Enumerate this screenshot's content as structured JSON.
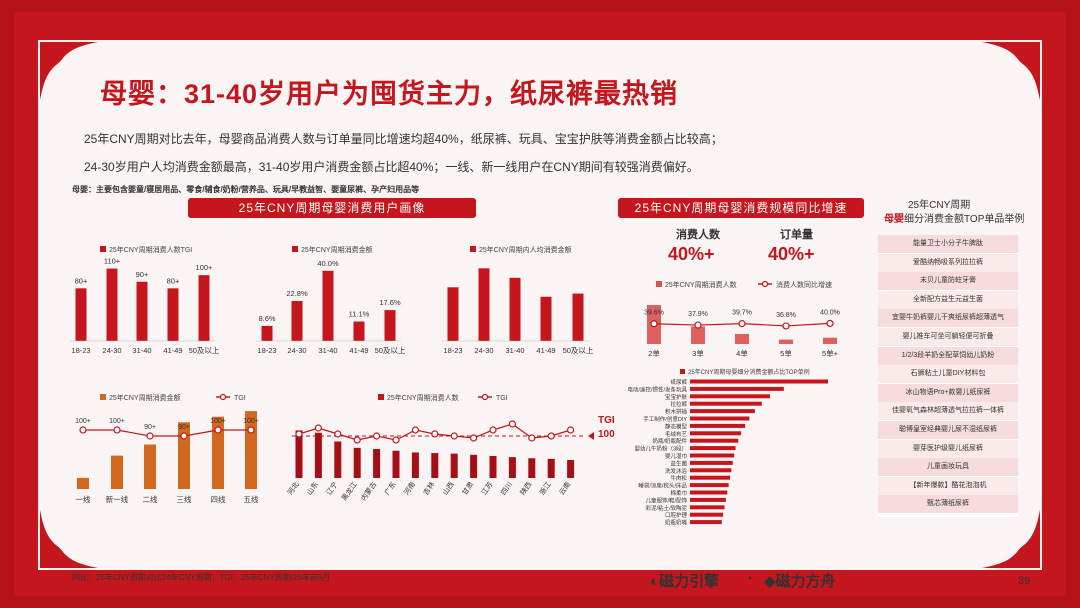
{
  "title": "母婴：31-40岁用户为囤货主力，纸尿裤最热销",
  "summary": [
    "25年CNY周期对比去年，母婴商品消费人数与订单量同比增速均超40%，纸尿裤、玩具、宝宝护肤等消费金额占比较高；",
    "24-30岁用户人均消费金额最高，31-40岁用户消费金额占比超40%；一线、新一线用户在CNY期间有较强消费偏好。"
  ],
  "note": "母婴：主要包含婴童/寝居用品、零食/辅食/奶粉/营养品、玩具/早教益智、婴童尿裤、孕产妇用品等",
  "banners": {
    "profile": "25年CNY周期母婴消费用户画像",
    "growth": "25年CNY周期母婴消费规模同比增速"
  },
  "right_panel": {
    "title1": "25年CNY周期",
    "title2_accent": "母婴",
    "title2_rest": "细分消费金额TOP单品举例",
    "items": [
      "能量卫士小分子牛脾肽",
      "爱酷纳畅吸系列拉拉裤",
      "末贝儿童防蛀牙膏",
      "全新配方益生元益生菌",
      "宜婴牛奶裤婴儿干爽纸尿裤超薄透气",
      "婴儿推车可坐可躺轻便可折叠",
      "1/2/3段羊奶全配草饲幼儿奶粉",
      "石狮粘土儿童DIY材料包",
      "冰山物语Pro+款婴儿纸尿裤",
      "佳婴氧气森林超薄透气拉拉裤一体裤",
      "聪博皇室经典婴儿尿不湿纸尿裤",
      "婴芽医护级婴儿纸尿裤",
      "儿童画妆玩具",
      "【新年爆款】酷花泡泡机",
      "甄芯薄纸尿裤"
    ]
  },
  "kpi": {
    "users_label": "消费人数",
    "users_value": "40%+",
    "orders_label": "订单量",
    "orders_value": "40%+"
  },
  "footer": "同比：25年CNY周期对比24年CNY周期；TGI：25年CNY周期/25年前9月",
  "logos": {
    "left": "磁力引擎",
    "dot": "·",
    "right": "磁力方舟"
  },
  "page_number": "39",
  "tgi_label": "TGI",
  "tgi_value": "100",
  "chart_data": [
    {
      "id": "age_tgi",
      "type": "bar",
      "legend": "25年CNY周期消费人数TGI",
      "categories": [
        "18-23",
        "24-30",
        "31-40",
        "41-49",
        "50及以上"
      ],
      "values": [
        80,
        110,
        90,
        80,
        100
      ],
      "labels": [
        "80+",
        "110+",
        "90+",
        "80+",
        "100+"
      ],
      "ylim": [
        0,
        120
      ]
    },
    {
      "id": "age_amount",
      "type": "bar",
      "legend": "25年CNY周期消费金额",
      "categories": [
        "18-23",
        "24-30",
        "31-40",
        "41-49",
        "50及以上"
      ],
      "values": [
        8.6,
        22.8,
        40.0,
        11.1,
        17.6
      ],
      "labels": [
        "8.6%",
        "22.8%",
        "40.0%",
        "11.1%",
        "17.6%"
      ],
      "ylim": [
        0,
        45
      ]
    },
    {
      "id": "age_avg",
      "type": "bar",
      "legend": "25年CNY周期内人均消费金额",
      "categories": [
        "18-23",
        "24-30",
        "31-40",
        "41-49",
        "50及以上"
      ],
      "values": [
        68,
        92,
        80,
        56,
        60
      ],
      "ylim": [
        0,
        100
      ]
    },
    {
      "id": "city",
      "type": "bar+line",
      "legend_bar": "25年CNY周期消费金额",
      "legend_line": "TGI",
      "categories": [
        "一线",
        "新一线",
        "二线",
        "三线",
        "四线",
        "五线"
      ],
      "bar_values": [
        10,
        30,
        40,
        60,
        65,
        70
      ],
      "tgi": [
        100,
        100,
        90,
        90,
        100,
        100
      ],
      "tgi_labels": [
        "100+",
        "100+",
        "90+",
        "90+",
        "100+",
        "100+"
      ],
      "ylim": [
        0,
        80
      ]
    },
    {
      "id": "province",
      "type": "bar+line",
      "legend_bar": "25年CNY周期消费人数",
      "legend_line": "TGI",
      "categories": [
        "河北",
        "山东",
        "辽宁",
        "黑龙江",
        "内蒙古",
        "广东",
        "河南",
        "吉林",
        "山西",
        "甘肃",
        "江苏",
        "四川",
        "陕西",
        "浙江",
        "云南"
      ],
      "bar_values": [
        82,
        78,
        63,
        52,
        50,
        47,
        44,
        43,
        42,
        40,
        38,
        36,
        34,
        33,
        31
      ],
      "tgi": [
        102,
        108,
        102,
        96,
        100,
        96,
        106,
        102,
        100,
        98,
        106,
        112,
        98,
        100,
        106
      ],
      "ylim": [
        0,
        100
      ]
    },
    {
      "id": "order_growth",
      "type": "bar+line",
      "legend_bar": "25年CNY周期消费人数",
      "legend_line": "消费人数同比增速",
      "categories": [
        "2单",
        "3单",
        "4单",
        "5单",
        "5单+"
      ],
      "bar_values": [
        62,
        28,
        16,
        7,
        10
      ],
      "growth": [
        39.6,
        37.9,
        39.7,
        36.8,
        40.0
      ],
      "growth_labels": [
        "39.6%",
        "37.9%",
        "39.7%",
        "36.8%",
        "40.0%"
      ],
      "ylim": [
        0,
        70
      ]
    },
    {
      "id": "category_top",
      "type": "bar",
      "legend": "25年CNY周期母婴细分消费金额占比TOP单例",
      "orientation": "horizontal",
      "categories": [
        "纸尿裤",
        "电动/遥控/惯性/发条玩具",
        "宝宝护肤",
        "拉拉裤",
        "积木拼插",
        "手工制作/创意DIY",
        "静态模型",
        "毛绒布艺",
        "奶瓶/奶瓶配件",
        "婴幼儿牛奶粉（3段）",
        "婴儿湿巾",
        "益生菌",
        "洗发沐浴",
        "牛肉松",
        "睡袋/凉席/枕头/床品",
        "棉柔巾",
        "儿童服饰/鞋/配饰",
        "彩泥/粘土/软陶泥",
        "口腔护理",
        "奶瓶奶嘴"
      ],
      "values": [
        100,
        68,
        58,
        52,
        47,
        43,
        40,
        37,
        35,
        33,
        32,
        31,
        30,
        29,
        28,
        27,
        26,
        25,
        24,
        23
      ]
    }
  ]
}
